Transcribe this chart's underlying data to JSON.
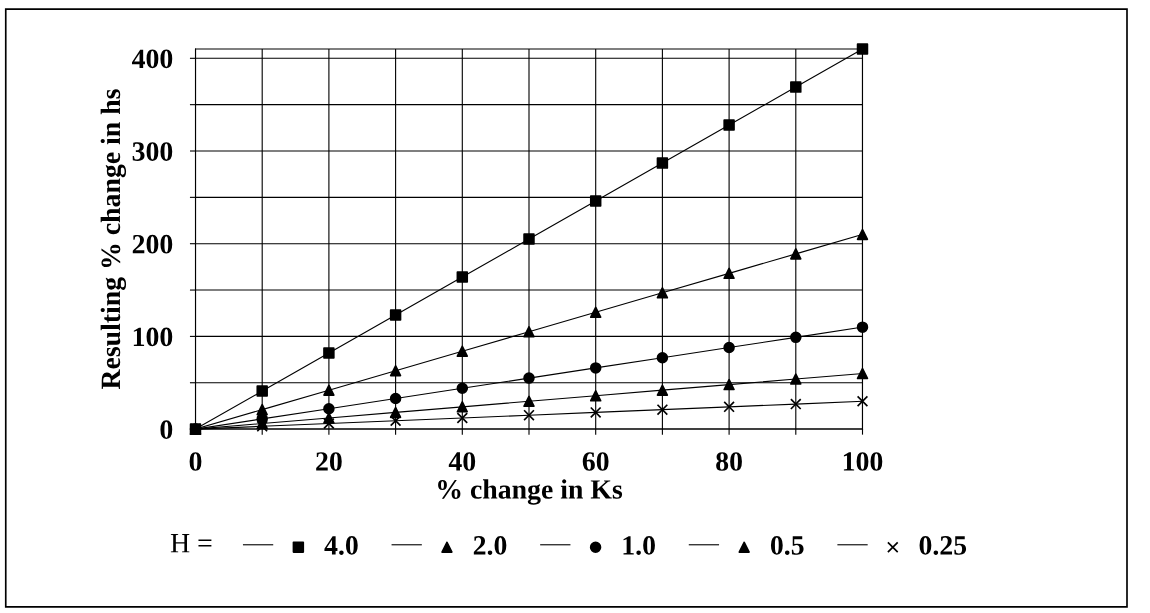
{
  "chart_data": {
    "type": "line",
    "xlabel": "% change in Ks",
    "ylabel": "Resulting % change in hs",
    "legend_title": "H =",
    "x": [
      0,
      10,
      20,
      30,
      40,
      50,
      60,
      70,
      80,
      90,
      100
    ],
    "series": [
      {
        "name": "4.0",
        "color": "#000000",
        "marker": "square",
        "values": [
          0,
          41,
          82,
          123,
          164,
          205,
          246,
          287,
          328,
          369,
          410
        ]
      },
      {
        "name": "2.0",
        "color": "#000000",
        "marker": "triangle",
        "values": [
          0,
          21,
          42,
          63,
          84,
          105,
          126,
          147,
          168,
          189,
          210
        ]
      },
      {
        "name": "1.0",
        "color": "#000000",
        "marker": "circle",
        "values": [
          0,
          11,
          22,
          33,
          44,
          55,
          66,
          77,
          88,
          99,
          110
        ]
      },
      {
        "name": "0.5",
        "color": "#000000",
        "marker": "triangle",
        "values": [
          0,
          6,
          12,
          18,
          24,
          30,
          36,
          42,
          48,
          54,
          60
        ]
      },
      {
        "name": "0.25",
        "color": "#000000",
        "marker": "cross",
        "values": [
          0,
          3,
          6,
          9,
          12,
          15,
          18,
          21,
          24,
          27,
          30
        ]
      }
    ],
    "xlim": [
      0,
      100
    ],
    "ylim": [
      0,
      410
    ],
    "xticks": [
      0,
      {
        "value": 10,
        "label": null
      },
      20,
      {
        "value": 30,
        "label": null
      },
      40,
      {
        "value": 50,
        "label": null
      },
      60,
      {
        "value": 70,
        "label": null
      },
      80,
      {
        "value": 90,
        "label": null
      },
      100
    ],
    "yticks": [
      0,
      {
        "value": 50,
        "label": null
      },
      100,
      {
        "value": 150,
        "label": null
      },
      200,
      {
        "value": 250,
        "label": null
      },
      300,
      {
        "value": 350,
        "label": null
      },
      400
    ],
    "grid": true,
    "legend": "bottom",
    "line_style": "solid"
  }
}
